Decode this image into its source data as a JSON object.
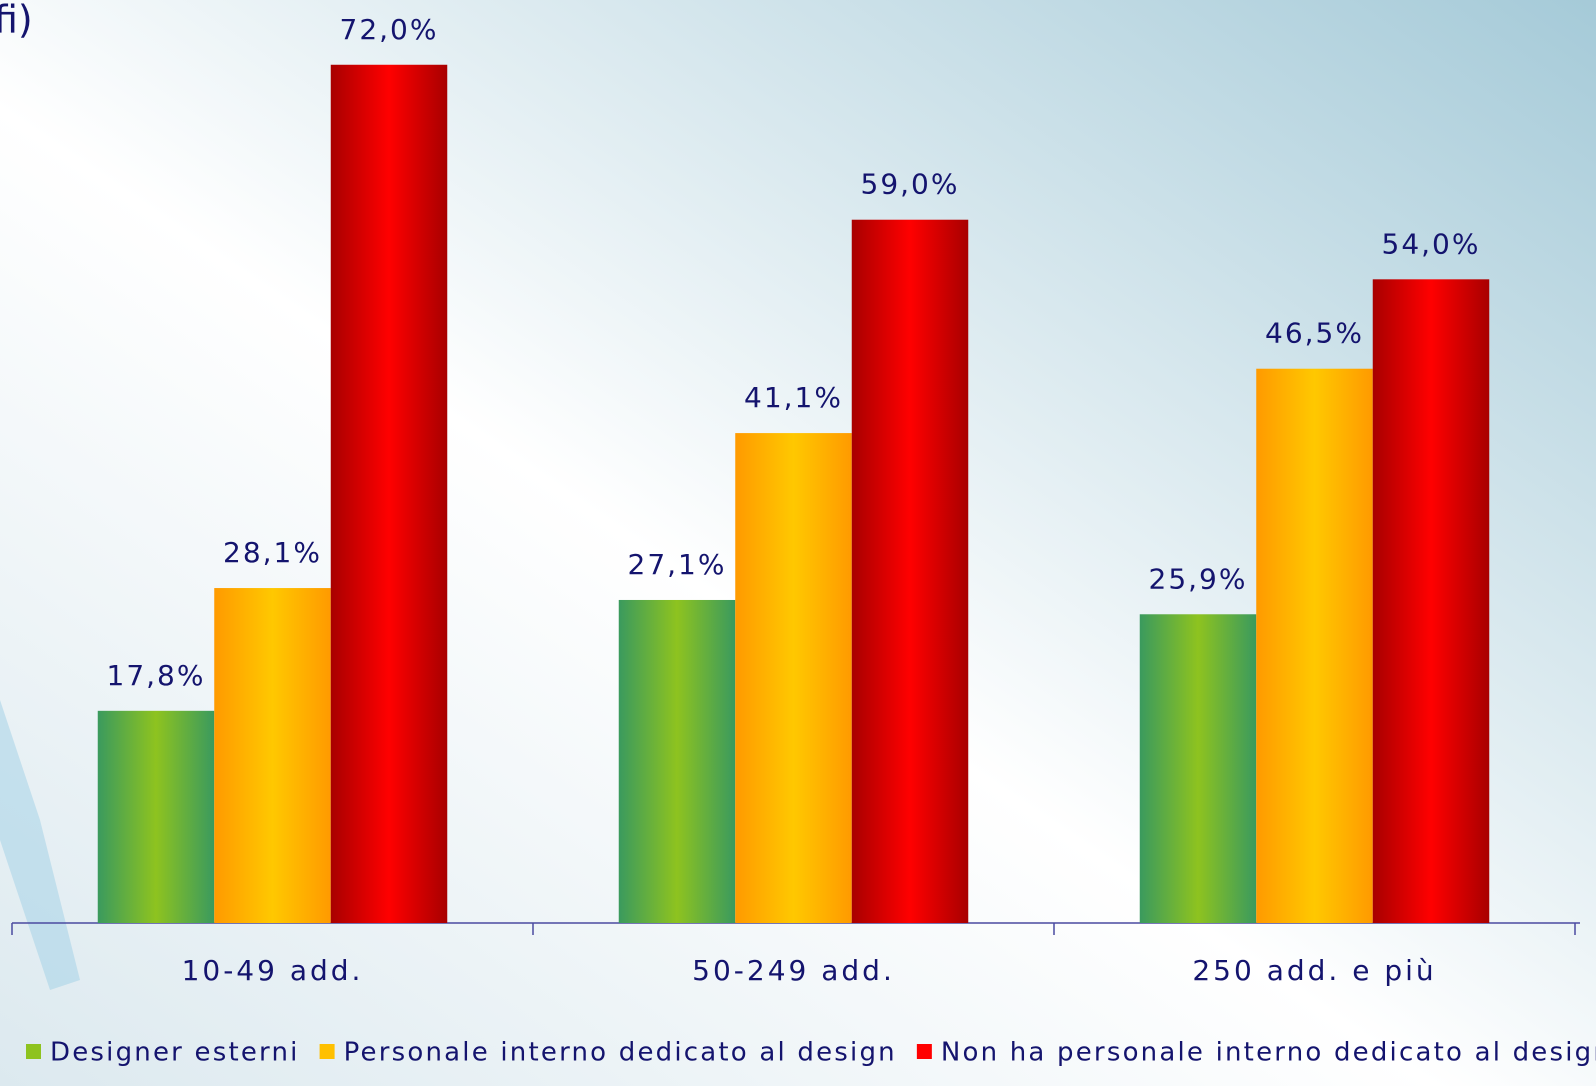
{
  "chart_data": {
    "type": "bar",
    "title": "fi)",
    "categories": [
      "10-49 add.",
      "50-249 add.",
      "250 add. e più"
    ],
    "series": [
      {
        "name": "Designer esterni",
        "color": "#8ec31f",
        "values": [
          17.8,
          27.1,
          25.9
        ],
        "value_labels": [
          "17,8%",
          "27,1%",
          "25,9%"
        ]
      },
      {
        "name": "Personale interno dedicato al design",
        "color": "#ffc000",
        "values": [
          28.1,
          41.1,
          46.5
        ],
        "value_labels": [
          "28,1%",
          "41,1%",
          "46,5%"
        ]
      },
      {
        "name": "Non ha personale interno dedicato al design",
        "color": "#ff0000",
        "values": [
          72.0,
          59.0,
          54.0
        ],
        "value_labels": [
          "72,0%",
          "59,0%",
          "54,0%"
        ]
      }
    ],
    "ylim": [
      0,
      75
    ],
    "grid": false,
    "legend": "bottom"
  }
}
